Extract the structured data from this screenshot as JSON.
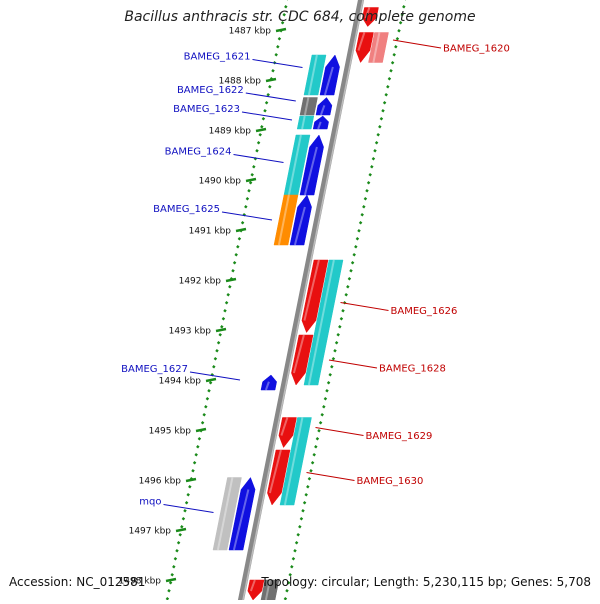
{
  "title": "Bacillus anthracis str. CDC 684, complete genome",
  "footer": {
    "accession": "Accession: NC_012581",
    "topology": "Topology: circular; Length: 5,230,115 bp; Genes: 5,708"
  },
  "colors": {
    "backbone": "#888888",
    "ticks": "#1a8a1a",
    "cyan": "#22c9c9",
    "blue": "#1010e0",
    "red": "#e81010",
    "pink": "#f08080",
    "orange": "#ff8c00",
    "gray": "#707070",
    "lightgray": "#c0c0c0",
    "label_left": "#1010c0",
    "label_right": "#c00000"
  },
  "kbp_labels": [
    {
      "text": "1487 kbp",
      "kbp": 1487
    },
    {
      "text": "1488 kbp",
      "kbp": 1488
    },
    {
      "text": "1489 kbp",
      "kbp": 1489
    },
    {
      "text": "1490 kbp",
      "kbp": 1490
    },
    {
      "text": "1491 kbp",
      "kbp": 1491
    },
    {
      "text": "1492 kbp",
      "kbp": 1492
    },
    {
      "text": "1493 kbp",
      "kbp": 1493
    },
    {
      "text": "1494 kbp",
      "kbp": 1494
    },
    {
      "text": "1495 kbp",
      "kbp": 1495
    },
    {
      "text": "1496 kbp",
      "kbp": 1496
    },
    {
      "text": "1497 kbp",
      "kbp": 1497
    },
    {
      "text": "1498 kbp",
      "kbp": 1498
    }
  ],
  "features": [
    {
      "track": "rev_outer",
      "start": 1486.55,
      "end": 1486.93,
      "color": "red",
      "dir": "-"
    },
    {
      "track": "rev_outer",
      "start": 1487.05,
      "end": 1487.65,
      "color": "red",
      "dir": "-"
    },
    {
      "track": "rev_inner",
      "start": 1487.05,
      "end": 1487.65,
      "color": "pink",
      "dir": "none"
    },
    {
      "track": "fwd_inner",
      "start": 1487.5,
      "end": 1488.3,
      "color": "cyan",
      "dir": "none"
    },
    {
      "track": "fwd_outer",
      "start": 1487.5,
      "end": 1488.3,
      "color": "blue",
      "dir": "+"
    },
    {
      "track": "fwd_inner",
      "start": 1488.35,
      "end": 1488.7,
      "color": "gray",
      "dir": "none"
    },
    {
      "track": "fwd_outer",
      "start": 1488.35,
      "end": 1488.7,
      "color": "blue",
      "dir": "+"
    },
    {
      "track": "fwd_inner",
      "start": 1488.72,
      "end": 1488.98,
      "color": "cyan",
      "dir": "none"
    },
    {
      "track": "fwd_outer",
      "start": 1488.72,
      "end": 1488.98,
      "color": "blue",
      "dir": "+"
    },
    {
      "track": "fwd_inner",
      "start": 1489.1,
      "end": 1490.3,
      "color": "cyan",
      "dir": "none"
    },
    {
      "track": "fwd_outer",
      "start": 1489.1,
      "end": 1490.3,
      "color": "blue",
      "dir": "+"
    },
    {
      "track": "fwd_inner",
      "start": 1490.3,
      "end": 1491.3,
      "color": "orange",
      "dir": "none"
    },
    {
      "track": "fwd_outer",
      "start": 1490.3,
      "end": 1491.3,
      "color": "blue",
      "dir": "+"
    },
    {
      "track": "rev_outer",
      "start": 1491.6,
      "end": 1493.05,
      "color": "red",
      "dir": "-"
    },
    {
      "track": "rev_inner",
      "start": 1491.6,
      "end": 1494.1,
      "color": "cyan",
      "dir": "none"
    },
    {
      "track": "rev_outer",
      "start": 1493.1,
      "end": 1494.1,
      "color": "red",
      "dir": "-"
    },
    {
      "track": "fwd_outer",
      "start": 1493.9,
      "end": 1494.2,
      "color": "blue",
      "dir": "+"
    },
    {
      "track": "rev_outer",
      "start": 1494.75,
      "end": 1495.35,
      "color": "red",
      "dir": "-"
    },
    {
      "track": "rev_inner",
      "start": 1494.75,
      "end": 1496.5,
      "color": "cyan",
      "dir": "none"
    },
    {
      "track": "rev_outer",
      "start": 1495.4,
      "end": 1496.5,
      "color": "red",
      "dir": "-"
    },
    {
      "track": "fwd_inner",
      "start": 1495.95,
      "end": 1497.4,
      "color": "lightgray",
      "dir": "none"
    },
    {
      "track": "fwd_outer",
      "start": 1495.95,
      "end": 1497.4,
      "color": "blue",
      "dir": "+"
    },
    {
      "track": "rev_outer",
      "start": 1498.0,
      "end": 1498.4,
      "color": "red",
      "dir": "-"
    },
    {
      "track": "rev_inner",
      "start": 1498.0,
      "end": 1498.4,
      "color": "gray",
      "dir": "none"
    }
  ],
  "gene_labels": [
    {
      "text": "BAMEG_1620",
      "side": "right",
      "kbp": 1487.2
    },
    {
      "text": "BAMEG_1621",
      "side": "left",
      "kbp": 1487.75
    },
    {
      "text": "BAMEG_1622",
      "side": "left",
      "kbp": 1488.42
    },
    {
      "text": "BAMEG_1623",
      "side": "left",
      "kbp": 1488.8
    },
    {
      "text": "BAMEG_1624",
      "side": "left",
      "kbp": 1489.65
    },
    {
      "text": "BAMEG_1625",
      "side": "left",
      "kbp": 1490.8
    },
    {
      "text": "BAMEG_1626",
      "side": "right",
      "kbp": 1492.45
    },
    {
      "text": "BAMEG_1627",
      "side": "left",
      "kbp": 1494.0
    },
    {
      "text": "BAMEG_1628",
      "side": "right",
      "kbp": 1493.6
    },
    {
      "text": "BAMEG_1629",
      "side": "right",
      "kbp": 1494.95
    },
    {
      "text": "BAMEG_1630",
      "side": "right",
      "kbp": 1495.85
    },
    {
      "text": "mqo",
      "side": "left",
      "kbp": 1496.65
    }
  ]
}
